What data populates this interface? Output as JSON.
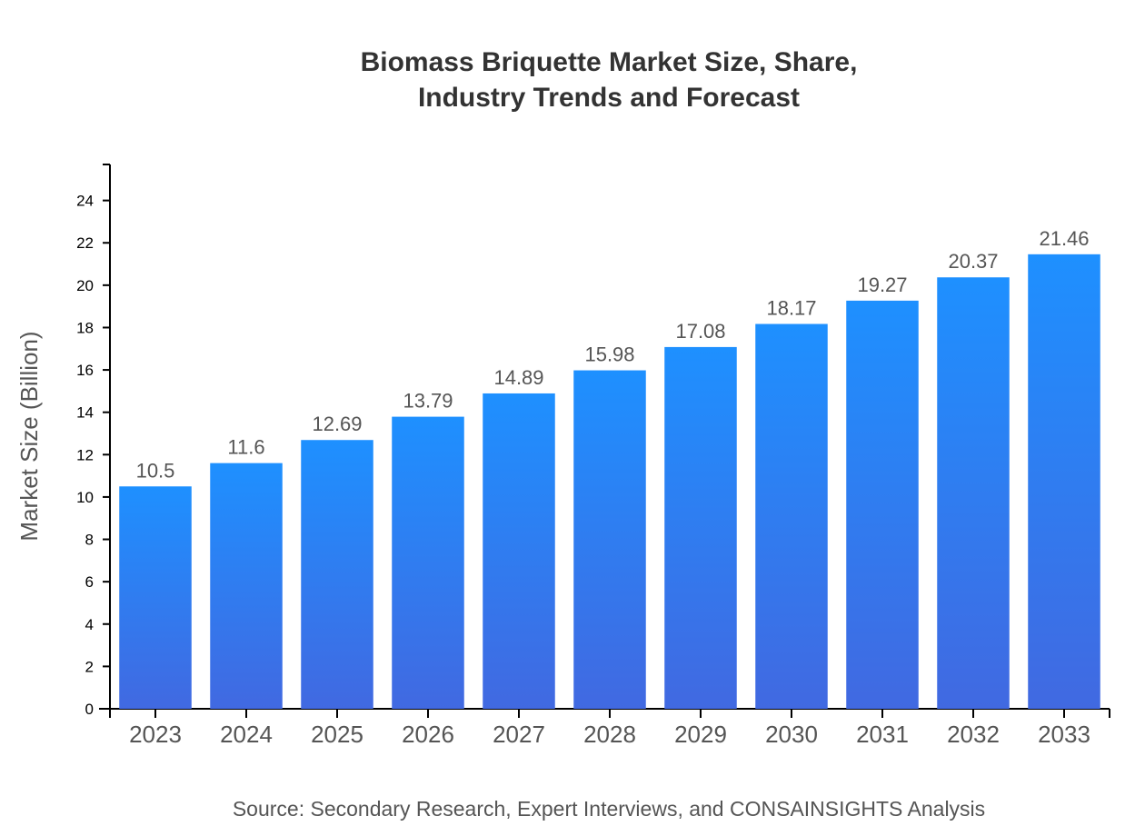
{
  "chart_data": {
    "type": "bar",
    "title_line1": "Biomass Briquette Market Size, Share,",
    "title_line2": "Industry Trends and Forecast",
    "xlabel": "",
    "ylabel": "Market Size (Billion)",
    "categories": [
      "2023",
      "2024",
      "2025",
      "2026",
      "2027",
      "2028",
      "2029",
      "2030",
      "2031",
      "2032",
      "2033"
    ],
    "values": [
      10.5,
      11.6,
      12.69,
      13.79,
      14.89,
      15.98,
      17.08,
      18.17,
      19.27,
      20.37,
      21.46
    ],
    "ylim": [
      0,
      25.7
    ],
    "yticks": [
      0,
      2,
      4,
      6,
      8,
      10,
      12,
      14,
      16,
      18,
      20,
      22,
      24
    ],
    "grid": false,
    "colors": {
      "bar_top": "#1E90FF",
      "bar_bottom": "#4169E1"
    }
  },
  "source": "Source: Secondary Research, Expert Interviews, and CONSAINSIGHTS Analysis"
}
